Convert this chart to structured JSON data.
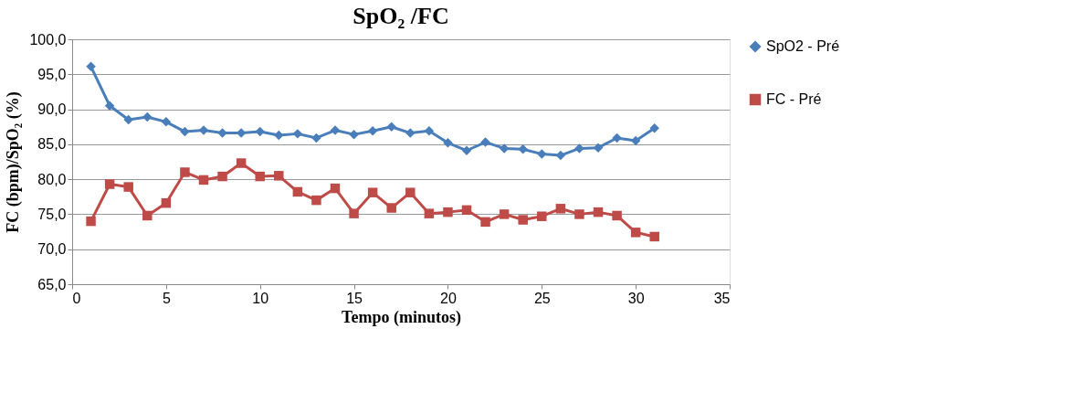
{
  "chart_data": {
    "type": "line",
    "title": "SpO₂ /FC",
    "xlabel": "Tempo (minutos)",
    "ylabel": "FC (bpm)/SpO₂ (%)",
    "x": [
      1,
      2,
      3,
      4,
      5,
      6,
      7,
      8,
      9,
      10,
      11,
      12,
      13,
      14,
      15,
      16,
      17,
      18,
      19,
      20,
      21,
      22,
      23,
      24,
      25,
      26,
      27,
      28,
      29,
      30,
      31
    ],
    "series": [
      {
        "name": "SpO2 - Pré",
        "color": "#4a7ebb",
        "marker": "diamond",
        "values": [
          96.1,
          90.5,
          88.5,
          88.9,
          88.2,
          86.8,
          87.0,
          86.6,
          86.6,
          86.8,
          86.3,
          86.5,
          85.9,
          87.0,
          86.4,
          86.9,
          87.5,
          86.6,
          86.9,
          85.2,
          84.1,
          85.3,
          84.4,
          84.3,
          83.6,
          83.4,
          84.4,
          84.5,
          85.9,
          85.5,
          87.3
        ]
      },
      {
        "name": "FC - Pré",
        "color": "#be4b48",
        "marker": "square",
        "values": [
          74.0,
          79.3,
          78.9,
          74.8,
          76.6,
          81.0,
          79.9,
          80.4,
          82.3,
          80.4,
          80.5,
          78.2,
          77.0,
          78.7,
          75.1,
          78.1,
          75.9,
          78.1,
          75.1,
          75.3,
          75.6,
          73.9,
          75.0,
          74.2,
          74.7,
          75.8,
          75.0,
          75.3,
          74.8,
          72.4,
          71.8
        ]
      }
    ],
    "xlim": [
      0,
      35
    ],
    "xticks": [
      0,
      5,
      10,
      15,
      20,
      25,
      30,
      35
    ],
    "ylim": [
      65,
      100
    ],
    "yticks": [
      {
        "value": 65,
        "label": "65,0"
      },
      {
        "value": 70,
        "label": "70,0"
      },
      {
        "value": 75,
        "label": "75,0"
      },
      {
        "value": 80,
        "label": "80,0"
      },
      {
        "value": 85,
        "label": "85,0"
      },
      {
        "value": 90,
        "label": "90,0"
      },
      {
        "value": 95,
        "label": "95,0"
      },
      {
        "value": 100,
        "label": "100,0"
      }
    ],
    "grid": "y",
    "legend": "right",
    "line_style": "solid"
  }
}
